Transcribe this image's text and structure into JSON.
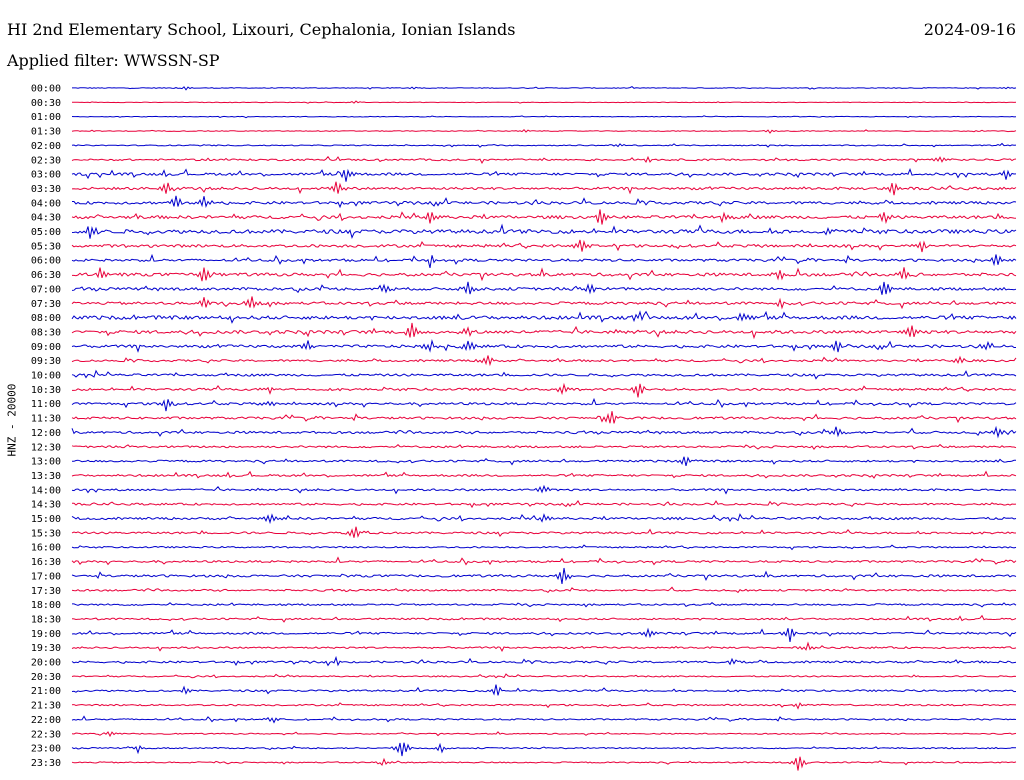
{
  "header": {
    "title": "HI 2nd Elementary School, Lixouri, Cephalonia, Ionian Islands",
    "date": "2024-09-16",
    "filter": "Applied filter: WWSSN-SP"
  },
  "chart_data": {
    "type": "helicorder",
    "title": "HI 2nd Elementary School, Lixouri, Cephalonia, Ionian Islands",
    "date": "2024-09-16",
    "filter": "WWSSN-SP",
    "ylabel": "HNZ - 20000",
    "line_duration_minutes": 30,
    "colors": [
      "#0000cc",
      "#e8003a"
    ],
    "grid": false,
    "rows": [
      {
        "label": "00:00",
        "noise": 0.15,
        "events": [
          {
            "x": 0.12,
            "amp": 0.3
          },
          {
            "x": 0.36,
            "amp": 0.25
          },
          {
            "x": 0.99,
            "amp": 0.2
          }
        ]
      },
      {
        "label": "00:30",
        "noise": 0.1,
        "events": [
          {
            "x": 0.3,
            "amp": 0.25
          }
        ]
      },
      {
        "label": "01:00",
        "noise": 0.12,
        "events": []
      },
      {
        "label": "01:30",
        "noise": 0.15,
        "events": [
          {
            "x": 0.48,
            "amp": 0.3
          },
          {
            "x": 0.74,
            "amp": 0.3
          }
        ]
      },
      {
        "label": "02:00",
        "noise": 0.2,
        "events": [
          {
            "x": 0.58,
            "amp": 0.3
          }
        ]
      },
      {
        "label": "02:30",
        "noise": 0.35,
        "events": [
          {
            "x": 0.61,
            "amp": 0.5
          },
          {
            "x": 0.92,
            "amp": 0.5
          }
        ]
      },
      {
        "label": "03:00",
        "noise": 0.5,
        "events": [
          {
            "x": 0.29,
            "amp": 1.3
          },
          {
            "x": 0.99,
            "amp": 1.0
          }
        ]
      },
      {
        "label": "03:30",
        "noise": 0.5,
        "events": [
          {
            "x": 0.1,
            "amp": 1.5
          },
          {
            "x": 0.28,
            "amp": 1.5
          },
          {
            "x": 0.87,
            "amp": 1.5
          }
        ]
      },
      {
        "label": "04:00",
        "noise": 0.55,
        "events": [
          {
            "x": 0.11,
            "amp": 1.2
          },
          {
            "x": 0.14,
            "amp": 0.9
          }
        ]
      },
      {
        "label": "04:30",
        "noise": 0.6,
        "events": [
          {
            "x": 0.38,
            "amp": 1.5
          },
          {
            "x": 0.56,
            "amp": 1.6
          },
          {
            "x": 0.69,
            "amp": 1.0
          },
          {
            "x": 0.86,
            "amp": 1.1
          }
        ]
      },
      {
        "label": "05:00",
        "noise": 0.75,
        "events": [
          {
            "x": 0.02,
            "amp": 1.5
          },
          {
            "x": 0.8,
            "amp": 0.9
          }
        ]
      },
      {
        "label": "05:30",
        "noise": 0.55,
        "events": [
          {
            "x": 0.54,
            "amp": 1.4
          },
          {
            "x": 0.9,
            "amp": 0.8
          }
        ]
      },
      {
        "label": "06:00",
        "noise": 0.5,
        "events": [
          {
            "x": 0.38,
            "amp": 1.2
          },
          {
            "x": 0.98,
            "amp": 1.3
          }
        ]
      },
      {
        "label": "06:30",
        "noise": 0.6,
        "events": [
          {
            "x": 0.03,
            "amp": 1.0
          },
          {
            "x": 0.14,
            "amp": 1.7
          },
          {
            "x": 0.75,
            "amp": 1.0
          },
          {
            "x": 0.88,
            "amp": 1.4
          }
        ]
      },
      {
        "label": "07:00",
        "noise": 0.55,
        "events": [
          {
            "x": 0.33,
            "amp": 0.9
          },
          {
            "x": 0.42,
            "amp": 1.2
          },
          {
            "x": 0.55,
            "amp": 1.1
          },
          {
            "x": 0.86,
            "amp": 1.6
          }
        ]
      },
      {
        "label": "07:30",
        "noise": 0.55,
        "events": [
          {
            "x": 0.14,
            "amp": 1.2
          },
          {
            "x": 0.19,
            "amp": 1.2
          },
          {
            "x": 0.75,
            "amp": 1.0
          }
        ]
      },
      {
        "label": "08:00",
        "noise": 0.7,
        "events": [
          {
            "x": 0.6,
            "amp": 1.1
          },
          {
            "x": 0.71,
            "amp": 1.0
          }
        ]
      },
      {
        "label": "08:30",
        "noise": 0.65,
        "events": [
          {
            "x": 0.36,
            "amp": 1.4
          },
          {
            "x": 0.42,
            "amp": 0.9
          },
          {
            "x": 0.89,
            "amp": 1.1
          }
        ]
      },
      {
        "label": "09:00",
        "noise": 0.55,
        "events": [
          {
            "x": 0.25,
            "amp": 0.9
          },
          {
            "x": 0.38,
            "amp": 1.0
          },
          {
            "x": 0.42,
            "amp": 1.3
          },
          {
            "x": 0.81,
            "amp": 1.3
          },
          {
            "x": 0.97,
            "amp": 0.8
          }
        ]
      },
      {
        "label": "09:30",
        "noise": 0.4,
        "events": [
          {
            "x": 0.44,
            "amp": 1.1
          },
          {
            "x": 0.94,
            "amp": 0.8
          }
        ]
      },
      {
        "label": "10:00",
        "noise": 0.45,
        "events": []
      },
      {
        "label": "10:30",
        "noise": 0.45,
        "events": [
          {
            "x": 0.21,
            "amp": 0.7
          },
          {
            "x": 0.52,
            "amp": 0.8
          },
          {
            "x": 0.6,
            "amp": 1.3
          }
        ]
      },
      {
        "label": "11:00",
        "noise": 0.45,
        "events": [
          {
            "x": 0.1,
            "amp": 1.2
          },
          {
            "x": 0.21,
            "amp": 0.6
          }
        ]
      },
      {
        "label": "11:30",
        "noise": 0.45,
        "events": [
          {
            "x": 0.57,
            "amp": 1.3
          }
        ]
      },
      {
        "label": "12:00",
        "noise": 0.45,
        "events": [
          {
            "x": 0.81,
            "amp": 1.1
          },
          {
            "x": 0.98,
            "amp": 1.0
          }
        ]
      },
      {
        "label": "12:30",
        "noise": 0.4,
        "events": []
      },
      {
        "label": "13:00",
        "noise": 0.4,
        "events": [
          {
            "x": 0.65,
            "amp": 1.1
          }
        ]
      },
      {
        "label": "13:30",
        "noise": 0.4,
        "events": []
      },
      {
        "label": "14:00",
        "noise": 0.4,
        "events": [
          {
            "x": 0.5,
            "amp": 0.8
          }
        ]
      },
      {
        "label": "14:30",
        "noise": 0.4,
        "events": []
      },
      {
        "label": "15:00",
        "noise": 0.45,
        "events": [
          {
            "x": 0.21,
            "amp": 1.0
          },
          {
            "x": 0.5,
            "amp": 0.6
          }
        ]
      },
      {
        "label": "15:30",
        "noise": 0.4,
        "events": [
          {
            "x": 0.3,
            "amp": 1.3
          }
        ]
      },
      {
        "label": "16:00",
        "noise": 0.3,
        "events": []
      },
      {
        "label": "16:30",
        "noise": 0.4,
        "events": []
      },
      {
        "label": "17:00",
        "noise": 0.45,
        "events": [
          {
            "x": 0.52,
            "amp": 1.8
          }
        ]
      },
      {
        "label": "17:30",
        "noise": 0.35,
        "events": []
      },
      {
        "label": "18:00",
        "noise": 0.35,
        "events": []
      },
      {
        "label": "18:30",
        "noise": 0.35,
        "events": []
      },
      {
        "label": "19:00",
        "noise": 0.4,
        "events": [
          {
            "x": 0.61,
            "amp": 0.8
          },
          {
            "x": 0.76,
            "amp": 1.4
          }
        ]
      },
      {
        "label": "19:30",
        "noise": 0.35,
        "events": [
          {
            "x": 0.78,
            "amp": 0.7
          }
        ]
      },
      {
        "label": "20:00",
        "noise": 0.4,
        "events": [
          {
            "x": 0.28,
            "amp": 0.7
          },
          {
            "x": 0.7,
            "amp": 0.6
          }
        ]
      },
      {
        "label": "20:30",
        "noise": 0.25,
        "events": []
      },
      {
        "label": "21:00",
        "noise": 0.35,
        "events": [
          {
            "x": 0.12,
            "amp": 0.7
          },
          {
            "x": 0.45,
            "amp": 1.1
          }
        ]
      },
      {
        "label": "21:30",
        "noise": 0.3,
        "events": [
          {
            "x": 0.77,
            "amp": 0.6
          }
        ]
      },
      {
        "label": "22:00",
        "noise": 0.3,
        "events": [
          {
            "x": 0.21,
            "amp": 0.5
          }
        ]
      },
      {
        "label": "22:30",
        "noise": 0.2,
        "events": [
          {
            "x": 0.04,
            "amp": 0.5
          }
        ]
      },
      {
        "label": "23:00",
        "noise": 0.25,
        "events": [
          {
            "x": 0.07,
            "amp": 0.6
          },
          {
            "x": 0.35,
            "amp": 1.9
          },
          {
            "x": 0.39,
            "amp": 0.6
          }
        ]
      },
      {
        "label": "23:30",
        "noise": 0.25,
        "events": [
          {
            "x": 0.33,
            "amp": 0.6
          },
          {
            "x": 0.77,
            "amp": 1.8
          }
        ]
      }
    ]
  }
}
